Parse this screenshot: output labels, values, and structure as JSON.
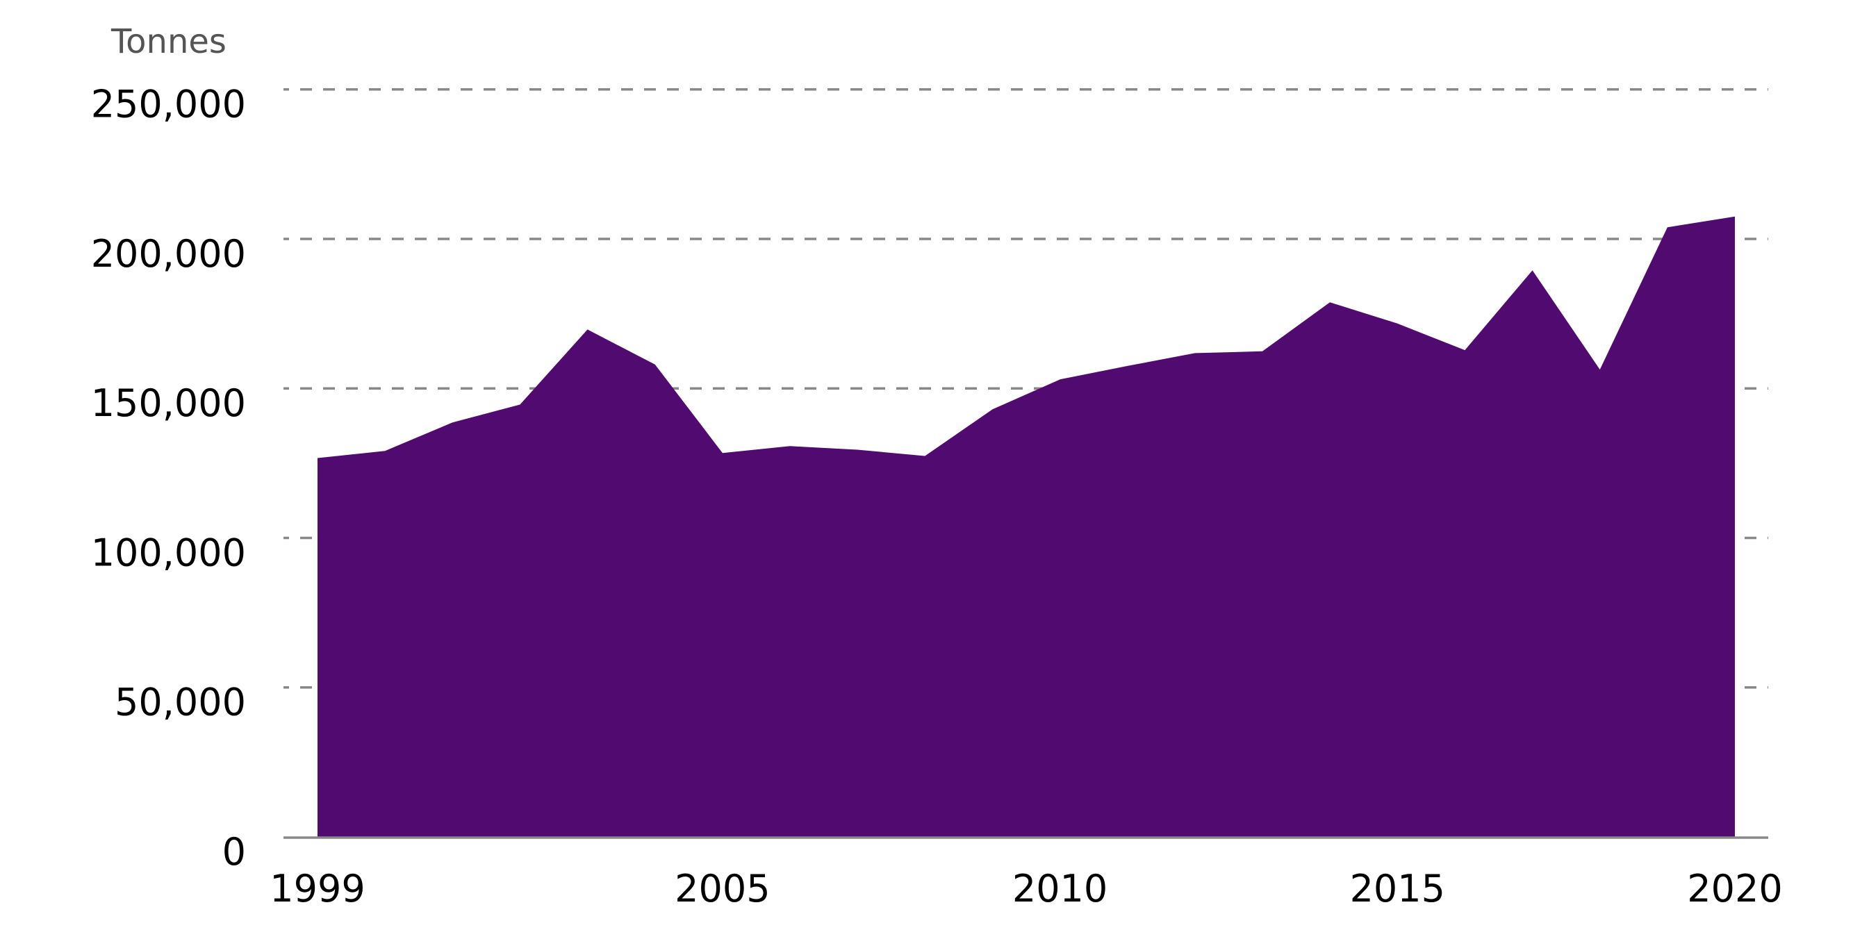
{
  "chart_data": {
    "type": "area",
    "title": "",
    "xlabel": "",
    "ylabel": "Tonnes",
    "x": [
      1999,
      2000,
      2001,
      2002,
      2003,
      2004,
      2005,
      2006,
      2007,
      2008,
      2009,
      2010,
      2011,
      2012,
      2013,
      2014,
      2015,
      2016,
      2017,
      2018,
      2019,
      2020
    ],
    "series": [
      {
        "name": "Tonnes",
        "color": "#500a70",
        "values": [
          126700,
          129100,
          138600,
          144600,
          169700,
          158000,
          128400,
          130700,
          129500,
          127400,
          143000,
          153000,
          157500,
          161800,
          162400,
          178800,
          171700,
          162800,
          189500,
          156300,
          203900,
          207500
        ]
      }
    ],
    "x_tick_labels": [
      "1999",
      "2005",
      "2010",
      "2015",
      "2020"
    ],
    "x_tick_values": [
      1999,
      2005,
      2010,
      2015,
      2020
    ],
    "y_tick_labels": [
      "0",
      "50,000",
      "100,000",
      "150,000",
      "200,000",
      "250,000"
    ],
    "y_tick_values": [
      0,
      50000,
      100000,
      150000,
      200000,
      250000
    ],
    "ylim": [
      0,
      250000
    ],
    "xlim": [
      1999,
      2020
    ],
    "grid": {
      "y": true,
      "x": false,
      "style": "dashed",
      "color": "#888888"
    },
    "axis_color": "#888888",
    "legend": null
  },
  "labels": {
    "y_unit": "Tonnes"
  }
}
